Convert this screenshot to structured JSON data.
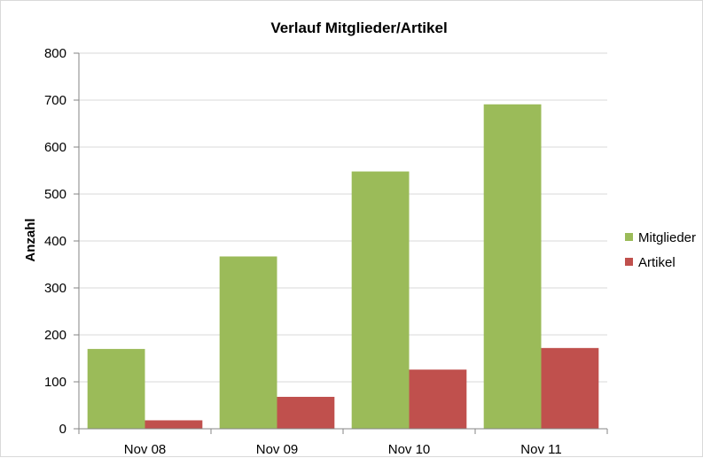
{
  "chart_data": {
    "type": "bar",
    "title": "Verlauf Mitglieder/Artikel",
    "xlabel": "",
    "ylabel": "Anzahl",
    "categories": [
      "Nov 08",
      "Nov 09",
      "Nov 10",
      "Nov 11"
    ],
    "series": [
      {
        "name": "Mitglieder",
        "values": [
          170,
          367,
          548,
          691
        ],
        "color": "#9bbb59"
      },
      {
        "name": "Artikel",
        "values": [
          18,
          68,
          126,
          172
        ],
        "color": "#c0504d"
      }
    ],
    "ylim": [
      0,
      800
    ],
    "yticks": [
      "0",
      "100",
      "200",
      "300",
      "400",
      "500",
      "600",
      "700",
      "800"
    ],
    "grid": true,
    "legend_position": "right"
  }
}
